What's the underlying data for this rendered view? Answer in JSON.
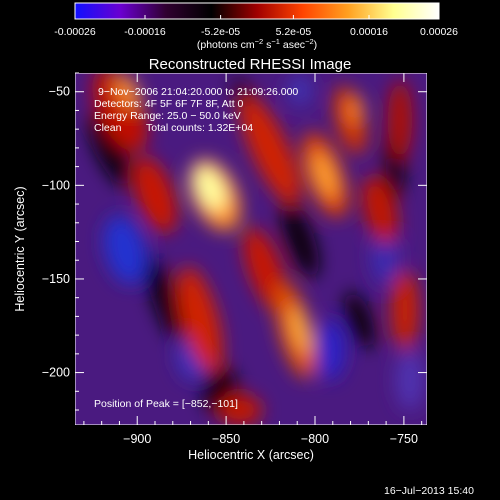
{
  "colorbar": {
    "ticks": [
      "-0.00026",
      "-0.00016",
      "-5.2e-05",
      "5.2e-05",
      "0.00016",
      "0.00026"
    ],
    "tick_values": [
      -0.00026,
      -0.00016,
      -5.2e-05,
      5.2e-05,
      0.00016,
      0.00026
    ],
    "range": [
      -0.00026,
      0.00026
    ],
    "unit_prefix": "(photons cm",
    "unit_exp1": "−2",
    "unit_mid": " s",
    "unit_exp2": "−1",
    "unit_mid2": " asec",
    "unit_exp3": "−2",
    "unit_suffix": ")",
    "colors": [
      "#1010ff",
      "#6a00d0",
      "#300030",
      "#000000",
      "#a00000",
      "#ff4400",
      "#ffa020",
      "#ffff90",
      "#ffffff"
    ]
  },
  "chart_data": {
    "type": "heatmap",
    "title": "Reconstructed RHESSI Image",
    "xlabel": "Heliocentric X (arcsec)",
    "ylabel": "Heliocentric Y (arcsec)",
    "xlim": [
      -935,
      -737
    ],
    "ylim": [
      -228,
      -40
    ],
    "xticks": [
      -900,
      -850,
      -800,
      -750
    ],
    "yticks": [
      -50,
      -100,
      -150,
      -200
    ],
    "xtick_labels": [
      "−900",
      "−850",
      "−800",
      "−750"
    ],
    "ytick_labels": [
      "−50",
      "−100",
      "−150",
      "−200"
    ],
    "peak": [
      -852,
      -101
    ]
  },
  "annotations": {
    "line1": "9−Nov−2006 21:04:20.000 to 21:09:26.000",
    "line2": "Detectors: 4F 5F 6F 7F 8F, Att 0",
    "line3": "Energy Range: 25.0 − 50.0 keV",
    "line4a": "Clean",
    "line4b": "Total counts: 1.32E+04",
    "peak_text": "Position of Peak = [−852,−101]"
  },
  "footer": {
    "timestamp": "16−Jul−2013 15:40"
  }
}
